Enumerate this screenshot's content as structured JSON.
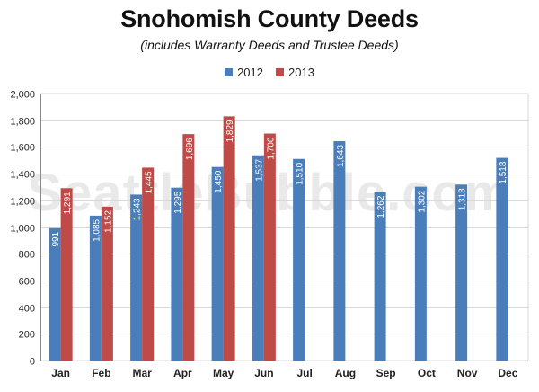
{
  "chart_data": {
    "type": "bar",
    "title": "Snohomish County Deeds",
    "subtitle": "(includes Warranty Deeds and Trustee Deeds)",
    "watermark": "SeattleBubble.com",
    "categories": [
      "Jan",
      "Feb",
      "Mar",
      "Apr",
      "May",
      "Jun",
      "Jul",
      "Aug",
      "Sep",
      "Oct",
      "Nov",
      "Dec"
    ],
    "series": [
      {
        "name": "2012",
        "color": "#4a7ebb",
        "values": [
          991,
          1085,
          1243,
          1295,
          1450,
          1537,
          1510,
          1643,
          1262,
          1302,
          1318,
          1518
        ],
        "labels": [
          "991",
          "1,085",
          "1,243",
          "1,295",
          "1,450",
          "1,537",
          "1,510",
          "1,643",
          "1,262",
          "1,302",
          "1,318",
          "1,518"
        ]
      },
      {
        "name": "2013",
        "color": "#be4b48",
        "values": [
          1291,
          1152,
          1445,
          1696,
          1829,
          1700,
          null,
          null,
          null,
          null,
          null,
          null
        ],
        "labels": [
          "1,291",
          "1,152",
          "1,445",
          "1,696",
          "1,829",
          "1,700",
          "",
          "",
          "",
          "",
          "",
          ""
        ]
      }
    ],
    "xlabel": "",
    "ylabel": "",
    "ylim": [
      0,
      2000
    ],
    "yticks": [
      0,
      200,
      400,
      600,
      800,
      1000,
      1200,
      1400,
      1600,
      1800,
      2000
    ],
    "ytick_labels": [
      "0",
      "200",
      "400",
      "600",
      "800",
      "1,000",
      "1,200",
      "1,400",
      "1,600",
      "1,800",
      "2,000"
    ],
    "grid": true,
    "legend_position": "top"
  }
}
